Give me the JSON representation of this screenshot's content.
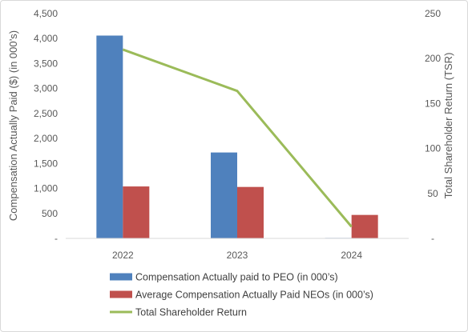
{
  "chart_data": {
    "type": "bar",
    "categories": [
      "2022",
      "2023",
      "2024"
    ],
    "series": [
      {
        "name": "Compensation Actually paid to PEO (in 000’s)",
        "kind": "bar",
        "axis": "left",
        "color": "#4f81bd",
        "values": [
          4060,
          1720,
          10
        ]
      },
      {
        "name": "Average Compensation Actually Paid NEOs (in 000’s)",
        "kind": "bar",
        "axis": "left",
        "color": "#c0504d",
        "values": [
          1040,
          1030,
          470
        ]
      },
      {
        "name": "Total Shareholder Return",
        "kind": "line",
        "axis": "right",
        "color": "#9bbb59",
        "values": [
          210,
          164,
          13
        ]
      }
    ],
    "ylabel": "Compensation Actually Paid ($) (in 000’s)",
    "y2label": "Total Shareholder Return (TSR)",
    "ylim": [
      0,
      4500
    ],
    "y2lim": [
      0,
      250
    ],
    "yticks": [
      "-",
      "500",
      "1,000",
      "1,500",
      "2,000",
      "2,500",
      "3,000",
      "3,500",
      "4,000",
      "4,500"
    ],
    "y2ticks": [
      "-",
      "50",
      "100",
      "150",
      "200",
      "250"
    ],
    "grid": false,
    "legend_position": "bottom"
  }
}
